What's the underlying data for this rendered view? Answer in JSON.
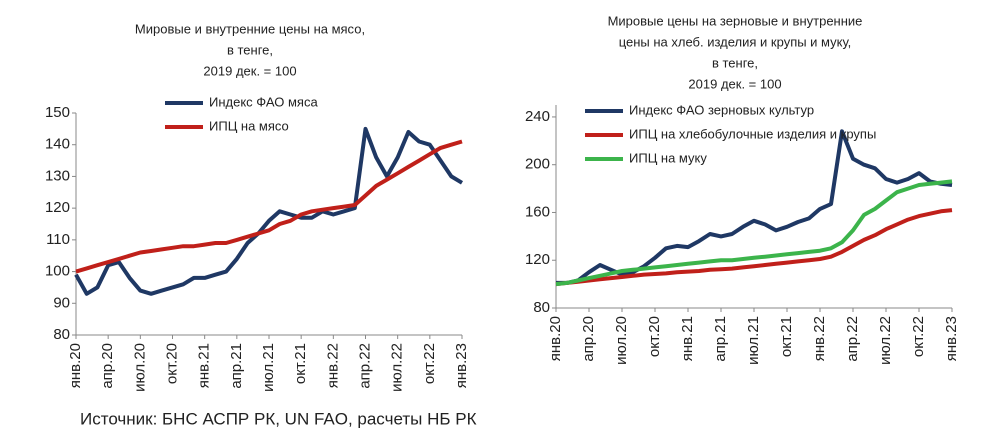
{
  "chart_data": [
    {
      "type": "line",
      "title": [
        "Мировые  и внутренние цены на мясо,",
        "в тенге,",
        "2019 дек. = 100"
      ],
      "categories": [
        "янв.20",
        null,
        null,
        "апр.20",
        null,
        null,
        "июл.20",
        null,
        null,
        "окт.20",
        null,
        null,
        "янв.21",
        null,
        null,
        "апр.21",
        null,
        null,
        "июл.21",
        null,
        null,
        "окт.21",
        null,
        null,
        "янв.22",
        null,
        null,
        "апр.22",
        null,
        null,
        "июл.22",
        null,
        null,
        "окт.22",
        null,
        null,
        "янв.23"
      ],
      "series": [
        {
          "name": "Индекс ФАО мяса",
          "color": "#1f3864",
          "values": [
            99,
            93,
            95,
            102,
            103,
            98,
            94,
            93,
            94,
            95,
            96,
            98,
            98,
            99,
            100,
            104,
            109,
            112,
            116,
            119,
            118,
            117,
            117,
            119,
            118,
            119,
            120,
            145,
            136,
            130,
            136,
            144,
            141,
            140,
            135,
            130,
            128
          ]
        },
        {
          "name": "ИПЦ на мясо",
          "color": "#c0201a",
          "values": [
            100,
            101,
            102,
            103,
            104,
            105,
            106,
            106.5,
            107,
            107.5,
            108,
            108,
            108.5,
            109,
            109,
            110,
            111,
            112,
            113,
            115,
            116,
            118,
            119,
            119.5,
            120,
            120.5,
            121,
            124,
            127,
            129,
            131,
            133,
            135,
            137,
            139,
            140,
            141
          ]
        }
      ],
      "ylim": [
        80,
        150
      ],
      "yticks": [
        80,
        90,
        100,
        110,
        120,
        130,
        140,
        150
      ]
    },
    {
      "type": "line",
      "title": [
        "Мировые  цены на зерновые и внутренние",
        "цены на хлеб. изделия и крупы и муку,",
        "в тенге,",
        "2019 дек. = 100"
      ],
      "categories": [
        "янв.20",
        null,
        null,
        "апр.20",
        null,
        null,
        "июл.20",
        null,
        null,
        "окт.20",
        null,
        null,
        "янв.21",
        null,
        null,
        "апр.21",
        null,
        null,
        "июл.21",
        null,
        null,
        "окт.21",
        null,
        null,
        "янв.22",
        null,
        null,
        "апр.22",
        null,
        null,
        "июл.22",
        null,
        null,
        "окт.22",
        null,
        null,
        "янв.23"
      ],
      "series": [
        {
          "name": "Индекс ФАО зерновых культур",
          "color": "#1f3864",
          "values": [
            101,
            101,
            103,
            110,
            116,
            112,
            108,
            110,
            115,
            122,
            130,
            132,
            131,
            136,
            142,
            140,
            142,
            148,
            153,
            150,
            145,
            148,
            152,
            155,
            163,
            167,
            228,
            205,
            200,
            197,
            188,
            185,
            188,
            193,
            186,
            184,
            183
          ]
        },
        {
          "name": "ИПЦ на хлебобулочные изделия и крупы",
          "color": "#c0201a",
          "values": [
            100,
            101,
            102,
            103,
            104,
            105,
            106,
            107,
            108,
            108.5,
            109,
            110,
            110.5,
            111,
            112,
            112.5,
            113,
            114,
            115,
            116,
            117,
            118,
            119,
            120,
            121,
            123,
            127,
            132,
            137,
            141,
            146,
            150,
            154,
            157,
            159,
            161,
            162
          ]
        },
        {
          "name": "ИПЦ на муку",
          "color": "#3cb44b",
          "values": [
            100,
            101,
            103,
            105,
            107,
            109,
            111,
            112,
            113,
            114,
            115,
            116,
            117,
            118,
            119,
            120,
            120,
            121,
            122,
            123,
            124,
            125,
            126,
            127,
            128,
            130,
            135,
            145,
            158,
            163,
            170,
            177,
            180,
            183,
            184,
            185,
            186
          ]
        }
      ],
      "ylim": [
        80,
        250
      ],
      "yticks": [
        80,
        120,
        160,
        200,
        240
      ]
    }
  ],
  "source": "Источник: БНС АСПР РК, UN FAO, расчеты НБ РК"
}
